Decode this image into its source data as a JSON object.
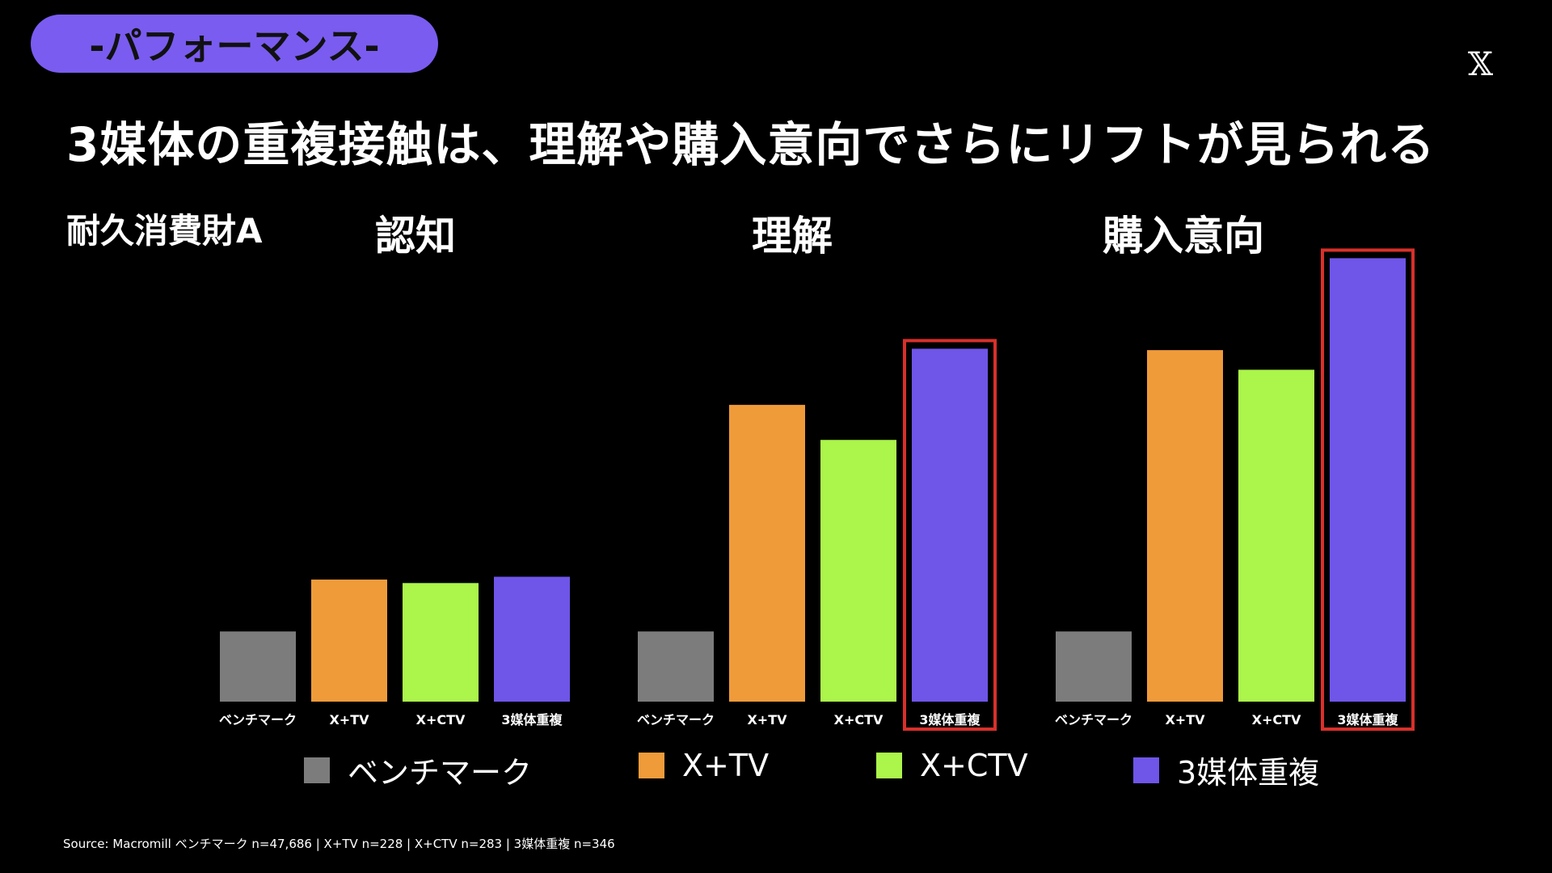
{
  "header": {
    "section_badge": "-パフォーマンス-",
    "logo_glyph": "𝕏",
    "headline": "3媒体の重複接触は、理解や購入意向でさらにリフトが見られる",
    "subject": "耐久消費財A"
  },
  "panels": [
    {
      "title": "認知"
    },
    {
      "title": "理解"
    },
    {
      "title": "購入意向"
    }
  ],
  "legend": [
    {
      "label": "ベンチマーク",
      "color": "#7c7c7c"
    },
    {
      "label": "X+TV",
      "color": "#ef9b3a"
    },
    {
      "label": "X+CTV",
      "color": "#acf54b"
    },
    {
      "label": "3媒体重複",
      "color": "#6f55e8"
    }
  ],
  "footer": {
    "source": "Source: Macromill ベンチマーク n=47,686 | X+TV n=228 | X+CTV n=283 | 3媒体重複 n=346"
  },
  "colors": {
    "highlight_box": "#d9302a",
    "badge": "#7a5cf0",
    "background": "#000000"
  },
  "chart_data": [
    {
      "type": "bar",
      "title": "認知",
      "categories": [
        "ベンチマーク",
        "X+TV",
        "X+CTV",
        "3媒体重複"
      ],
      "values": [
        100,
        174,
        169,
        178
      ],
      "highlighted": [],
      "ylim": [
        0,
        600
      ]
    },
    {
      "type": "bar",
      "title": "理解",
      "categories": [
        "ベンチマーク",
        "X+TV",
        "X+CTV",
        "3媒体重複"
      ],
      "values": [
        100,
        423,
        373,
        503
      ],
      "highlighted": [
        "3媒体重複"
      ],
      "ylim": [
        0,
        600
      ]
    },
    {
      "type": "bar",
      "title": "購入意向",
      "categories": [
        "ベンチマーク",
        "X+TV",
        "X+CTV",
        "3媒体重複"
      ],
      "values": [
        100,
        501,
        473,
        632
      ],
      "highlighted": [
        "3媒体重複"
      ],
      "ylim": [
        0,
        650
      ]
    }
  ]
}
